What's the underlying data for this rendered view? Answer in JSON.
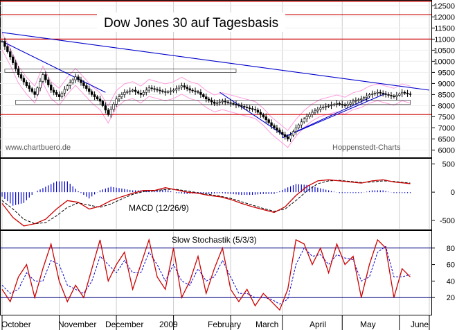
{
  "chart_data": {
    "type": "stock-chart",
    "title": "Dow Jones 30 auf Tagesbasis",
    "watermark_left": "www.chartbuero.de",
    "watermark_right": "Hoppenstedt-Charts",
    "x_months": [
      "October",
      "November",
      "December",
      "2009",
      "February",
      "March",
      "April",
      "May",
      "June"
    ],
    "colors": {
      "price": "#000000",
      "trend": "#0000cc",
      "band": "#ff99dd",
      "resistance": "#cc0000",
      "macd": "#cc0000",
      "signal": "#000000",
      "histogram": "#0000cc",
      "stoch_k": "#cc0000",
      "stoch_d": "#0000cc",
      "levels": "#000080",
      "grid": "#cccccc"
    },
    "price_panel": {
      "yticks": [
        6000,
        6500,
        7000,
        7500,
        8000,
        8500,
        9000,
        9500,
        10000,
        10500,
        11000,
        11500,
        12000,
        12500
      ],
      "ylim": [
        5700,
        12700
      ],
      "horizontal_lines": [
        12700,
        12100,
        11000,
        7600
      ],
      "series_close": [
        [
          0,
          10900
        ],
        [
          3,
          10200
        ],
        [
          6,
          9400
        ],
        [
          9,
          8900
        ],
        [
          12,
          8500
        ],
        [
          15,
          9400
        ],
        [
          18,
          8700
        ],
        [
          21,
          8400
        ],
        [
          24,
          8900
        ],
        [
          27,
          9300
        ],
        [
          30,
          8900
        ],
        [
          33,
          8500
        ],
        [
          36,
          8200
        ],
        [
          39,
          7600
        ],
        [
          42,
          8300
        ],
        [
          45,
          8600
        ],
        [
          48,
          8700
        ],
        [
          51,
          8500
        ],
        [
          54,
          8800
        ],
        [
          57,
          8700
        ],
        [
          60,
          8600
        ],
        [
          63,
          8700
        ],
        [
          66,
          8900
        ],
        [
          69,
          8700
        ],
        [
          72,
          8600
        ],
        [
          75,
          8300
        ],
        [
          78,
          8100
        ],
        [
          81,
          8200
        ],
        [
          84,
          8100
        ],
        [
          87,
          8000
        ],
        [
          90,
          7900
        ],
        [
          93,
          7800
        ],
        [
          96,
          7500
        ],
        [
          99,
          7100
        ],
        [
          102,
          6800
        ],
        [
          105,
          6500
        ],
        [
          108,
          7000
        ],
        [
          111,
          7400
        ],
        [
          114,
          7700
        ],
        [
          117,
          7900
        ],
        [
          120,
          8000
        ],
        [
          123,
          8100
        ],
        [
          126,
          8000
        ],
        [
          129,
          8200
        ],
        [
          132,
          8300
        ],
        [
          135,
          8500
        ],
        [
          138,
          8600
        ],
        [
          141,
          8500
        ],
        [
          144,
          8400
        ],
        [
          147,
          8600
        ],
        [
          150,
          8500
        ]
      ],
      "trend_lines": [
        {
          "from": [
            0,
            11300
          ],
          "to": [
            157,
            8700
          ]
        },
        {
          "from": [
            0,
            10900
          ],
          "to": [
            38,
            8600
          ]
        },
        {
          "from": [
            80,
            8600
          ],
          "to": [
            105,
            6550
          ]
        },
        {
          "from": [
            103,
            6550
          ],
          "to": [
            141,
            8550
          ]
        },
        {
          "from": [
            103,
            6550
          ],
          "to": [
            135,
            8350
          ]
        }
      ],
      "rectangles": [
        {
          "x0": 1,
          "x1": 86,
          "y0": 9500,
          "y1": 9650
        },
        {
          "x0": 5,
          "x1": 150,
          "y0": 8050,
          "y1": 8250
        }
      ]
    },
    "macd_panel": {
      "label": "MACD (12/26/9)",
      "yticks": [
        -500,
        0,
        500
      ],
      "ylim": [
        -650,
        580
      ],
      "macd": [
        [
          0,
          -200
        ],
        [
          4,
          -450
        ],
        [
          8,
          -600
        ],
        [
          12,
          -560
        ],
        [
          16,
          -480
        ],
        [
          20,
          -300
        ],
        [
          24,
          -150
        ],
        [
          28,
          -180
        ],
        [
          32,
          -300
        ],
        [
          36,
          -250
        ],
        [
          40,
          -150
        ],
        [
          44,
          -80
        ],
        [
          48,
          -20
        ],
        [
          52,
          30
        ],
        [
          56,
          30
        ],
        [
          60,
          80
        ],
        [
          64,
          40
        ],
        [
          68,
          0
        ],
        [
          72,
          -20
        ],
        [
          76,
          -60
        ],
        [
          80,
          -80
        ],
        [
          84,
          -130
        ],
        [
          88,
          -200
        ],
        [
          92,
          -260
        ],
        [
          96,
          -310
        ],
        [
          100,
          -360
        ],
        [
          104,
          -260
        ],
        [
          108,
          -60
        ],
        [
          112,
          100
        ],
        [
          116,
          200
        ],
        [
          120,
          220
        ],
        [
          124,
          200
        ],
        [
          128,
          180
        ],
        [
          132,
          160
        ],
        [
          136,
          200
        ],
        [
          140,
          220
        ],
        [
          144,
          180
        ],
        [
          148,
          160
        ],
        [
          150,
          150
        ]
      ],
      "signal": [
        [
          0,
          -150
        ],
        [
          4,
          -300
        ],
        [
          8,
          -480
        ],
        [
          12,
          -560
        ],
        [
          16,
          -540
        ],
        [
          20,
          -420
        ],
        [
          24,
          -270
        ],
        [
          28,
          -190
        ],
        [
          32,
          -230
        ],
        [
          36,
          -270
        ],
        [
          40,
          -210
        ],
        [
          44,
          -120
        ],
        [
          48,
          -40
        ],
        [
          52,
          10
        ],
        [
          56,
          20
        ],
        [
          60,
          50
        ],
        [
          64,
          50
        ],
        [
          68,
          20
        ],
        [
          72,
          -10
        ],
        [
          76,
          -40
        ],
        [
          80,
          -70
        ],
        [
          84,
          -110
        ],
        [
          88,
          -170
        ],
        [
          92,
          -230
        ],
        [
          96,
          -290
        ],
        [
          100,
          -340
        ],
        [
          104,
          -300
        ],
        [
          108,
          -150
        ],
        [
          112,
          20
        ],
        [
          116,
          150
        ],
        [
          120,
          200
        ],
        [
          124,
          210
        ],
        [
          128,
          190
        ],
        [
          132,
          170
        ],
        [
          136,
          180
        ],
        [
          140,
          200
        ],
        [
          144,
          190
        ],
        [
          148,
          170
        ],
        [
          150,
          160
        ]
      ]
    },
    "stoch_panel": {
      "label": "Slow Stochastik (5/3/3)",
      "yticks": [
        20,
        40,
        60,
        80
      ],
      "ylim": [
        0,
        100
      ],
      "levels": [
        20,
        80
      ],
      "k": [
        [
          0,
          30
        ],
        [
          3,
          15
        ],
        [
          6,
          45
        ],
        [
          9,
          60
        ],
        [
          12,
          20
        ],
        [
          15,
          55
        ],
        [
          18,
          85
        ],
        [
          21,
          40
        ],
        [
          24,
          15
        ],
        [
          27,
          35
        ],
        [
          30,
          20
        ],
        [
          33,
          55
        ],
        [
          36,
          90
        ],
        [
          39,
          40
        ],
        [
          42,
          60
        ],
        [
          45,
          75
        ],
        [
          48,
          30
        ],
        [
          51,
          60
        ],
        [
          54,
          90
        ],
        [
          57,
          45
        ],
        [
          60,
          30
        ],
        [
          63,
          80
        ],
        [
          66,
          20
        ],
        [
          69,
          40
        ],
        [
          72,
          70
        ],
        [
          75,
          25
        ],
        [
          78,
          55
        ],
        [
          81,
          80
        ],
        [
          84,
          30
        ],
        [
          87,
          15
        ],
        [
          90,
          30
        ],
        [
          93,
          10
        ],
        [
          96,
          25
        ],
        [
          99,
          15
        ],
        [
          102,
          5
        ],
        [
          105,
          30
        ],
        [
          108,
          90
        ],
        [
          111,
          85
        ],
        [
          114,
          60
        ],
        [
          117,
          80
        ],
        [
          120,
          50
        ],
        [
          123,
          85
        ],
        [
          126,
          60
        ],
        [
          129,
          70
        ],
        [
          132,
          20
        ],
        [
          135,
          60
        ],
        [
          138,
          90
        ],
        [
          141,
          80
        ],
        [
          144,
          20
        ],
        [
          147,
          55
        ],
        [
          150,
          45
        ]
      ],
      "d": [
        [
          0,
          35
        ],
        [
          3,
          25
        ],
        [
          6,
          30
        ],
        [
          9,
          50
        ],
        [
          12,
          40
        ],
        [
          15,
          40
        ],
        [
          18,
          65
        ],
        [
          21,
          60
        ],
        [
          24,
          35
        ],
        [
          27,
          30
        ],
        [
          30,
          25
        ],
        [
          33,
          40
        ],
        [
          36,
          70
        ],
        [
          39,
          60
        ],
        [
          42,
          50
        ],
        [
          45,
          65
        ],
        [
          48,
          50
        ],
        [
          51,
          50
        ],
        [
          54,
          75
        ],
        [
          57,
          60
        ],
        [
          60,
          40
        ],
        [
          63,
          60
        ],
        [
          66,
          40
        ],
        [
          69,
          35
        ],
        [
          72,
          55
        ],
        [
          75,
          40
        ],
        [
          78,
          45
        ],
        [
          81,
          65
        ],
        [
          84,
          45
        ],
        [
          87,
          25
        ],
        [
          90,
          25
        ],
        [
          93,
          20
        ],
        [
          96,
          20
        ],
        [
          99,
          18
        ],
        [
          102,
          12
        ],
        [
          105,
          18
        ],
        [
          108,
          60
        ],
        [
          111,
          80
        ],
        [
          114,
          70
        ],
        [
          117,
          72
        ],
        [
          120,
          60
        ],
        [
          123,
          72
        ],
        [
          126,
          68
        ],
        [
          129,
          66
        ],
        [
          132,
          40
        ],
        [
          135,
          45
        ],
        [
          138,
          75
        ],
        [
          141,
          82
        ],
        [
          144,
          45
        ],
        [
          147,
          45
        ],
        [
          150,
          48
        ]
      ]
    }
  }
}
